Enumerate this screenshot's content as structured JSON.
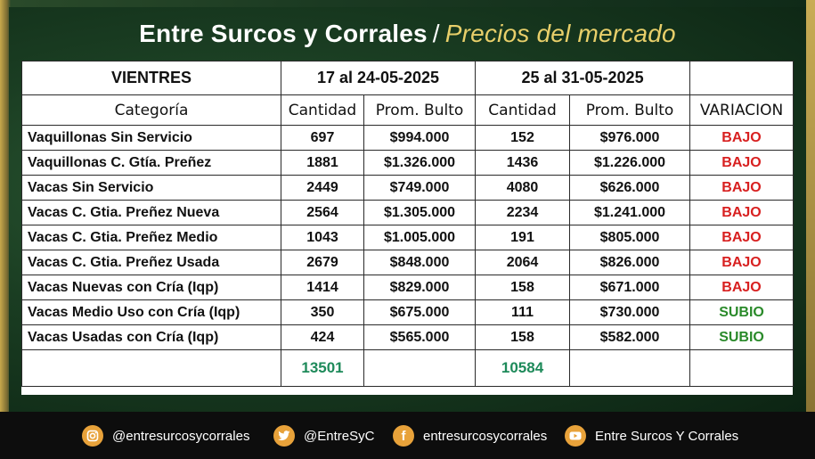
{
  "title": {
    "main": "Entre Surcos y Corrales",
    "separator": "/",
    "sub": "Precios del mercado"
  },
  "table": {
    "header1": {
      "group": "VIENTRES",
      "period1": "17 al 24-05-2025",
      "period2": "25 al 31-05-2025"
    },
    "header2": {
      "categoria": "Categoría",
      "cantidad1": "Cantidad",
      "prom1": "Prom. Bulto",
      "cantidad2": "Cantidad",
      "prom2": "Prom. Bulto",
      "variacion": "VARIACION"
    },
    "rows": [
      {
        "cat": "Vaquillonas Sin Servicio",
        "q1": "697",
        "p1": "$994.000",
        "q2": "152",
        "p2": "$976.000",
        "var": "BAJO"
      },
      {
        "cat": "Vaquillonas C. Gtía. Preñez",
        "q1": "1881",
        "p1": "$1.326.000",
        "q2": "1436",
        "p2": "$1.226.000",
        "var": "BAJO"
      },
      {
        "cat": "Vacas Sin Servicio",
        "q1": "2449",
        "p1": "$749.000",
        "q2": "4080",
        "p2": "$626.000",
        "var": "BAJO"
      },
      {
        "cat": "Vacas C. Gtia. Preñez Nueva",
        "q1": "2564",
        "p1": "$1.305.000",
        "q2": "2234",
        "p2": "$1.241.000",
        "var": "BAJO"
      },
      {
        "cat": "Vacas C. Gtia. Preñez Medio",
        "q1": "1043",
        "p1": "$1.005.000",
        "q2": "191",
        "p2": "$805.000",
        "var": "BAJO"
      },
      {
        "cat": "Vacas C. Gtia. Preñez Usada",
        "q1": "2679",
        "p1": "$848.000",
        "q2": "2064",
        "p2": "$826.000",
        "var": "BAJO"
      },
      {
        "cat": "Vacas Nuevas con Cría (Iqp)",
        "q1": "1414",
        "p1": "$829.000",
        "q2": "158",
        "p2": "$671.000",
        "var": "BAJO"
      },
      {
        "cat": "Vacas Medio Uso con Cría (Iqp)",
        "q1": "350",
        "p1": "$675.000",
        "q2": "111",
        "p2": "$730.000",
        "var": "SUBIO"
      },
      {
        "cat": "Vacas Usadas con Cría (Iqp)",
        "q1": "424",
        "p1": "$565.000",
        "q2": "158",
        "p2": "$582.000",
        "var": "SUBIO"
      }
    ],
    "totals": {
      "q1": "13501",
      "q2": "10584"
    },
    "colors": {
      "bajo": "#d82020",
      "subio": "#2a8a2a",
      "total": "#1e8a5a"
    }
  },
  "footer": {
    "instagram": {
      "icon": "instagram-icon",
      "label": "@entresurcosycorrales"
    },
    "twitter": {
      "icon": "twitter-icon",
      "label": "@EntreSyC"
    },
    "facebook": {
      "icon": "facebook-icon",
      "label": "entresurcosycorrales"
    },
    "youtube": {
      "icon": "youtube-icon",
      "label": "Entre Surcos Y Corrales"
    }
  }
}
